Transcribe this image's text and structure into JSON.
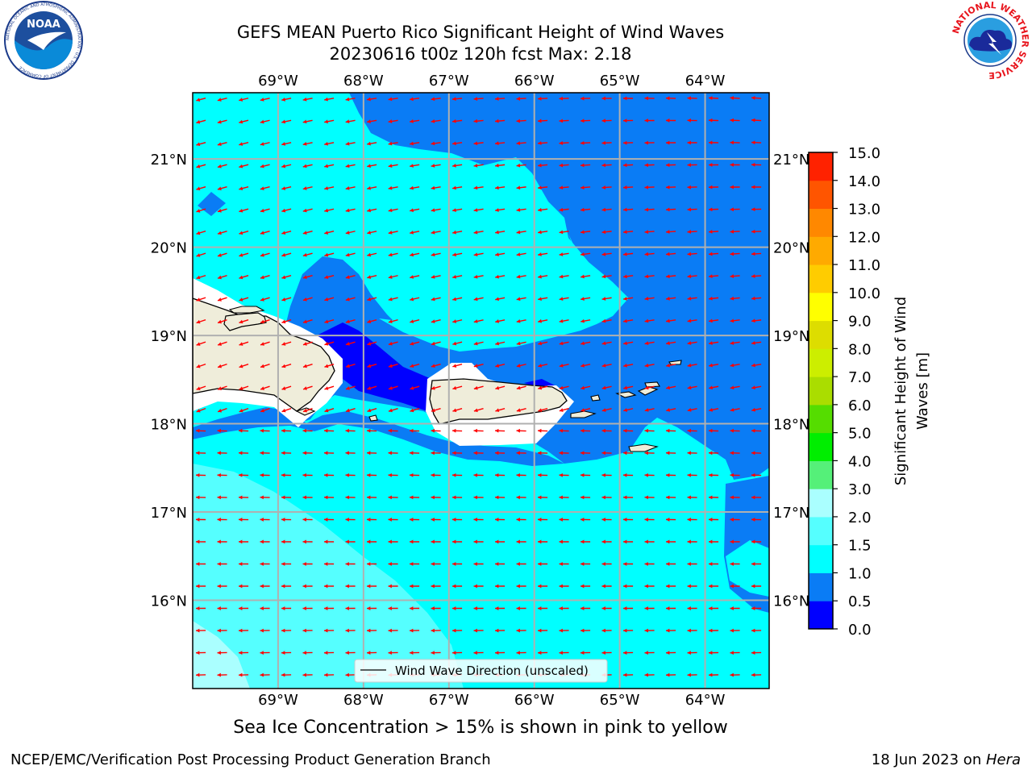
{
  "title": {
    "line1": "GEFS MEAN Puerto Rico Significant Height of Wind Waves",
    "line2": "20230616 t00z 120h fcst   Max: 2.18"
  },
  "logos": {
    "left": {
      "icon": "noaa-logo-icon",
      "text": "NOAA",
      "ring_text": "NATIONAL OCEANIC AND ATMOSPHERIC ADMINISTRATION · U.S. DEPARTMENT OF COMMERCE"
    },
    "right": {
      "icon": "nws-logo-icon",
      "ring_text": "NATIONAL WEATHER SERVICE"
    }
  },
  "map": {
    "lon_range": [
      -70.0,
      -63.25
    ],
    "lat_range": [
      15.0,
      21.75
    ],
    "lon_ticks": [
      "69°W",
      "68°W",
      "67°W",
      "66°W",
      "65°W",
      "64°W"
    ],
    "lat_ticks": [
      "21°N",
      "20°N",
      "19°N",
      "18°N",
      "17°N",
      "16°N"
    ],
    "grid": true,
    "legend": {
      "label": "Wind Wave Direction (unscaled)",
      "placement": "bottom-center"
    },
    "arrow_color": "#ff0000",
    "land_color": "#efedda"
  },
  "colorbar": {
    "label_line1": "Significant Height of Wind",
    "label_line2": "Waves [m]",
    "ticks": [
      "15.0",
      "14.0",
      "13.0",
      "12.0",
      "11.0",
      "10.0",
      "9.0",
      "8.0",
      "7.0",
      "6.0",
      "5.0",
      "4.0",
      "3.0",
      "2.0",
      "1.5",
      "1.0",
      "0.5",
      "0.0"
    ],
    "levels": [
      0.0,
      0.5,
      1.0,
      1.5,
      2.0,
      3.0,
      4.0,
      5.0,
      6.0,
      7.0,
      8.0,
      9.0,
      10.0,
      11.0,
      12.0,
      13.0,
      14.0,
      15.0
    ],
    "colors": [
      "#0000ff",
      "#0a7cf5",
      "#00ffff",
      "#55ffff",
      "#aaffff",
      "#55f079",
      "#00ee00",
      "#55dd00",
      "#aadd00",
      "#ccee00",
      "#dddd00",
      "#ffff00",
      "#ffcc00",
      "#ffaa00",
      "#ff8800",
      "#ff5500",
      "#ff2200"
    ]
  },
  "notes": {
    "ice": "Sea Ice Concentration > 15% is shown in pink to yellow"
  },
  "footer": {
    "left": "NCEP/EMC/Verification Post Processing Product Generation Branch",
    "right_prefix": "18 Jun 2023 on ",
    "right_host": "Hera"
  }
}
